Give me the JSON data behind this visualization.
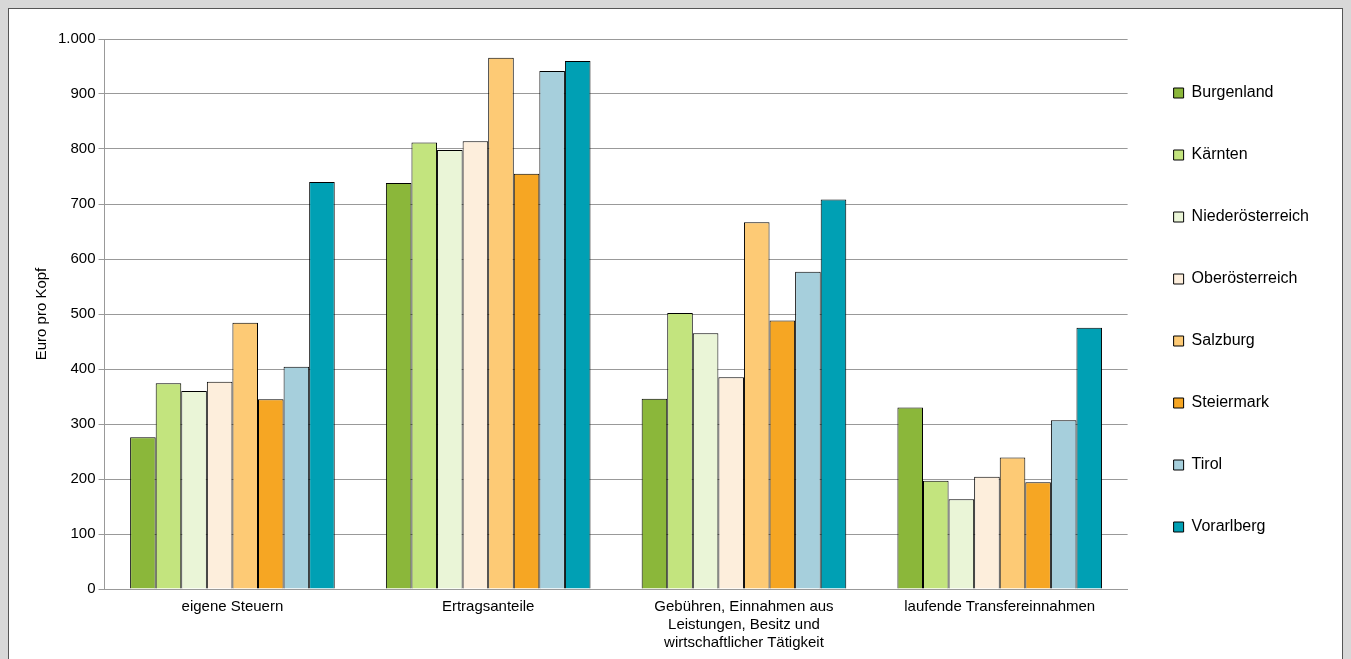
{
  "chart_data": {
    "type": "bar",
    "ylabel": "Euro pro Kopf",
    "categories": [
      "eigene Steuern",
      "Ertragsanteile",
      "Gebühren, Einnahmen aus Leistungen, Besitz und wirtschaftlicher Tätigkeit",
      "laufende Transfereinnahmen"
    ],
    "series": [
      {
        "name": "Burgenland",
        "color": "#8bb73a",
        "values": [
          276,
          738,
          346,
          330
        ]
      },
      {
        "name": "Kärnten",
        "color": "#c3e47e",
        "values": [
          374,
          812,
          502,
          197
        ]
      },
      {
        "name": "Niederösterreich",
        "color": "#eaf5d7",
        "values": [
          360,
          798,
          465,
          163
        ]
      },
      {
        "name": "Oberösterreich",
        "color": "#fdeedc",
        "values": [
          377,
          814,
          385,
          204
        ]
      },
      {
        "name": "Salzburg",
        "color": "#fdca75",
        "values": [
          484,
          966,
          667,
          239
        ]
      },
      {
        "name": "Steiermark",
        "color": "#f6a623",
        "values": [
          345,
          755,
          488,
          194
        ]
      },
      {
        "name": "Tirol",
        "color": "#a6cfdc",
        "values": [
          404,
          942,
          577,
          307
        ]
      },
      {
        "name": "Vorarlberg",
        "color": "#00a0b4",
        "values": [
          740,
          960,
          708,
          475
        ]
      }
    ],
    "ylim": [
      0,
      1000
    ],
    "yticks": [
      0,
      100,
      200,
      300,
      400,
      500,
      600,
      700,
      800,
      900,
      {
        "value": 1000,
        "label": "1.000"
      }
    ],
    "grid": "y",
    "legend": "right"
  }
}
